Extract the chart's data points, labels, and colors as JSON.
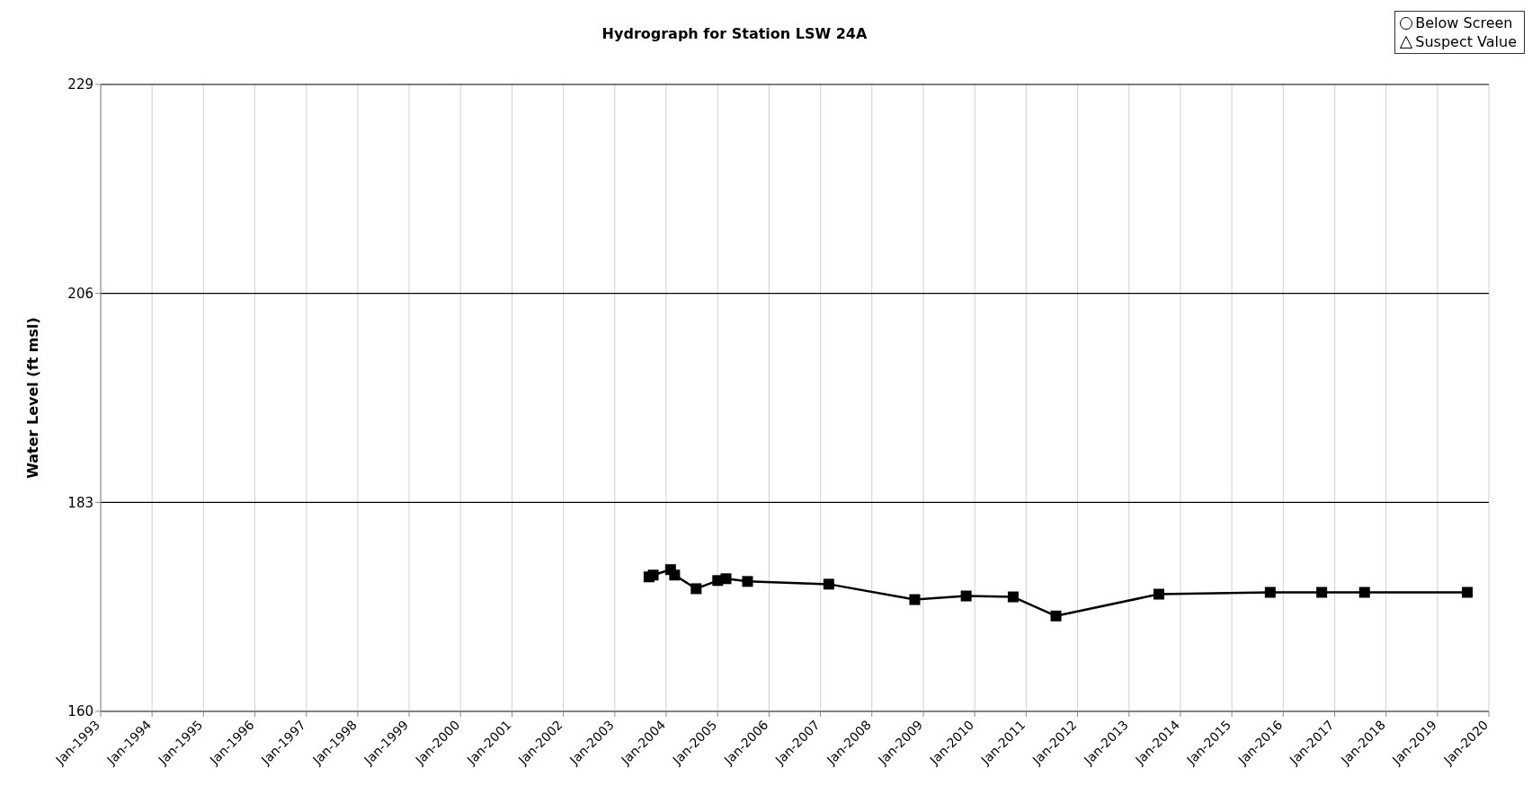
{
  "chart_data": {
    "type": "line",
    "title": "Hydrograph for Station LSW 24A",
    "ylabel": "Water Level (ft msl)",
    "x": [
      "2003-09",
      "2003-10",
      "2004-02",
      "2004-03",
      "2004-08",
      "2005-01",
      "2005-03",
      "2005-08",
      "2007-03",
      "2008-11",
      "2009-11",
      "2010-10",
      "2011-08",
      "2013-08",
      "2015-10",
      "2016-10",
      "2017-08",
      "2019-08"
    ],
    "series": [
      {
        "color": "#000000",
        "marker": "square",
        "line_style": "solid",
        "values": [
          174.8,
          175.0,
          175.6,
          175.0,
          173.5,
          174.4,
          174.6,
          174.3,
          174.0,
          172.3,
          172.7,
          172.6,
          170.5,
          172.9,
          173.1,
          173.1,
          173.1,
          173.1
        ]
      },
      {
        "type": "scatter",
        "name": "Below Screen",
        "color": "#000000",
        "marker": "circle",
        "values": [
          null,
          null,
          null,
          null,
          null,
          null,
          null,
          null,
          null,
          null,
          null,
          null,
          null,
          null,
          null,
          null,
          null,
          null
        ]
      },
      {
        "type": "scatter",
        "name": "Suspect Value",
        "color": "#000000",
        "marker": "triangle",
        "values": [
          null,
          null,
          null,
          null,
          null,
          null,
          null,
          null,
          null,
          null,
          null,
          null,
          null,
          null,
          null,
          null,
          null,
          null
        ]
      }
    ],
    "xlim": [
      "1993-01",
      "2020-01"
    ],
    "xticks": [
      {
        "value": "1993-01",
        "label": "Jan-1993"
      },
      {
        "value": "1994-01",
        "label": "Jan-1994"
      },
      {
        "value": "1995-01",
        "label": "Jan-1995"
      },
      {
        "value": "1996-01",
        "label": "Jan-1996"
      },
      {
        "value": "1997-01",
        "label": "Jan-1997"
      },
      {
        "value": "1998-01",
        "label": "Jan-1998"
      },
      {
        "value": "1999-01",
        "label": "Jan-1999"
      },
      {
        "value": "2000-01",
        "label": "Jan-2000"
      },
      {
        "value": "2001-01",
        "label": "Jan-2001"
      },
      {
        "value": "2002-01",
        "label": "Jan-2002"
      },
      {
        "value": "2003-01",
        "label": "Jan-2003"
      },
      {
        "value": "2004-01",
        "label": "Jan-2004"
      },
      {
        "value": "2005-01",
        "label": "Jan-2005"
      },
      {
        "value": "2006-01",
        "label": "Jan-2006"
      },
      {
        "value": "2007-01",
        "label": "Jan-2007"
      },
      {
        "value": "2008-01",
        "label": "Jan-2008"
      },
      {
        "value": "2009-01",
        "label": "Jan-2009"
      },
      {
        "value": "2010-01",
        "label": "Jan-2010"
      },
      {
        "value": "2011-01",
        "label": "Jan-2011"
      },
      {
        "value": "2012-01",
        "label": "Jan-2012"
      },
      {
        "value": "2013-01",
        "label": "Jan-2013"
      },
      {
        "value": "2014-01",
        "label": "Jan-2014"
      },
      {
        "value": "2015-01",
        "label": "Jan-2015"
      },
      {
        "value": "2016-01",
        "label": "Jan-2016"
      },
      {
        "value": "2017-01",
        "label": "Jan-2017"
      },
      {
        "value": "2018-01",
        "label": "Jan-2018"
      },
      {
        "value": "2019-01",
        "label": "Jan-2019"
      },
      {
        "value": "2020-01",
        "label": "Jan-2020"
      }
    ],
    "ylim": [
      160,
      229
    ],
    "yticks": [
      160,
      183,
      206,
      229
    ],
    "grid": true,
    "legend": "top right"
  }
}
